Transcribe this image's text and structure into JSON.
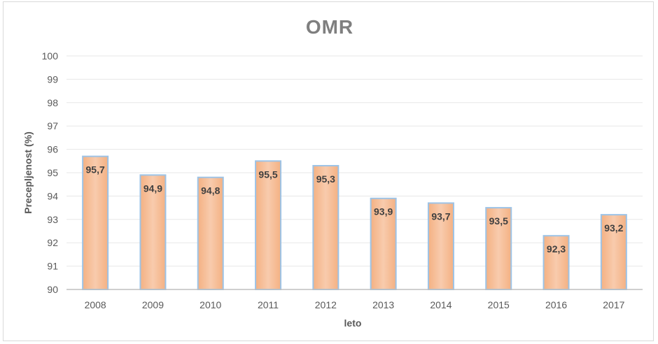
{
  "chart_data": {
    "type": "bar",
    "title": "OMR",
    "xlabel": "leto",
    "ylabel": "Precepljenost (%)",
    "categories": [
      "2008",
      "2009",
      "2010",
      "2011",
      "2012",
      "2013",
      "2014",
      "2015",
      "2016",
      "2017"
    ],
    "values": [
      95.7,
      94.9,
      94.8,
      95.5,
      95.3,
      93.9,
      93.7,
      93.5,
      92.3,
      93.2
    ],
    "data_labels": [
      "95,7",
      "94,9",
      "94,8",
      "95,5",
      "95,3",
      "93,9",
      "93,7",
      "93,5",
      "92,3",
      "93,2"
    ],
    "ylim": [
      90,
      100
    ],
    "yticks": [
      "90",
      "91",
      "92",
      "93",
      "94",
      "95",
      "96",
      "97",
      "98",
      "99",
      "100"
    ],
    "grid": true,
    "legend": "none",
    "colors": {
      "bar_fill": "#f4b183",
      "bar_fill_center": "#f8cbad",
      "bar_stroke": "#9dc3e6",
      "gridline": "#e7e7e7",
      "axis": "#bfbfbf"
    }
  }
}
